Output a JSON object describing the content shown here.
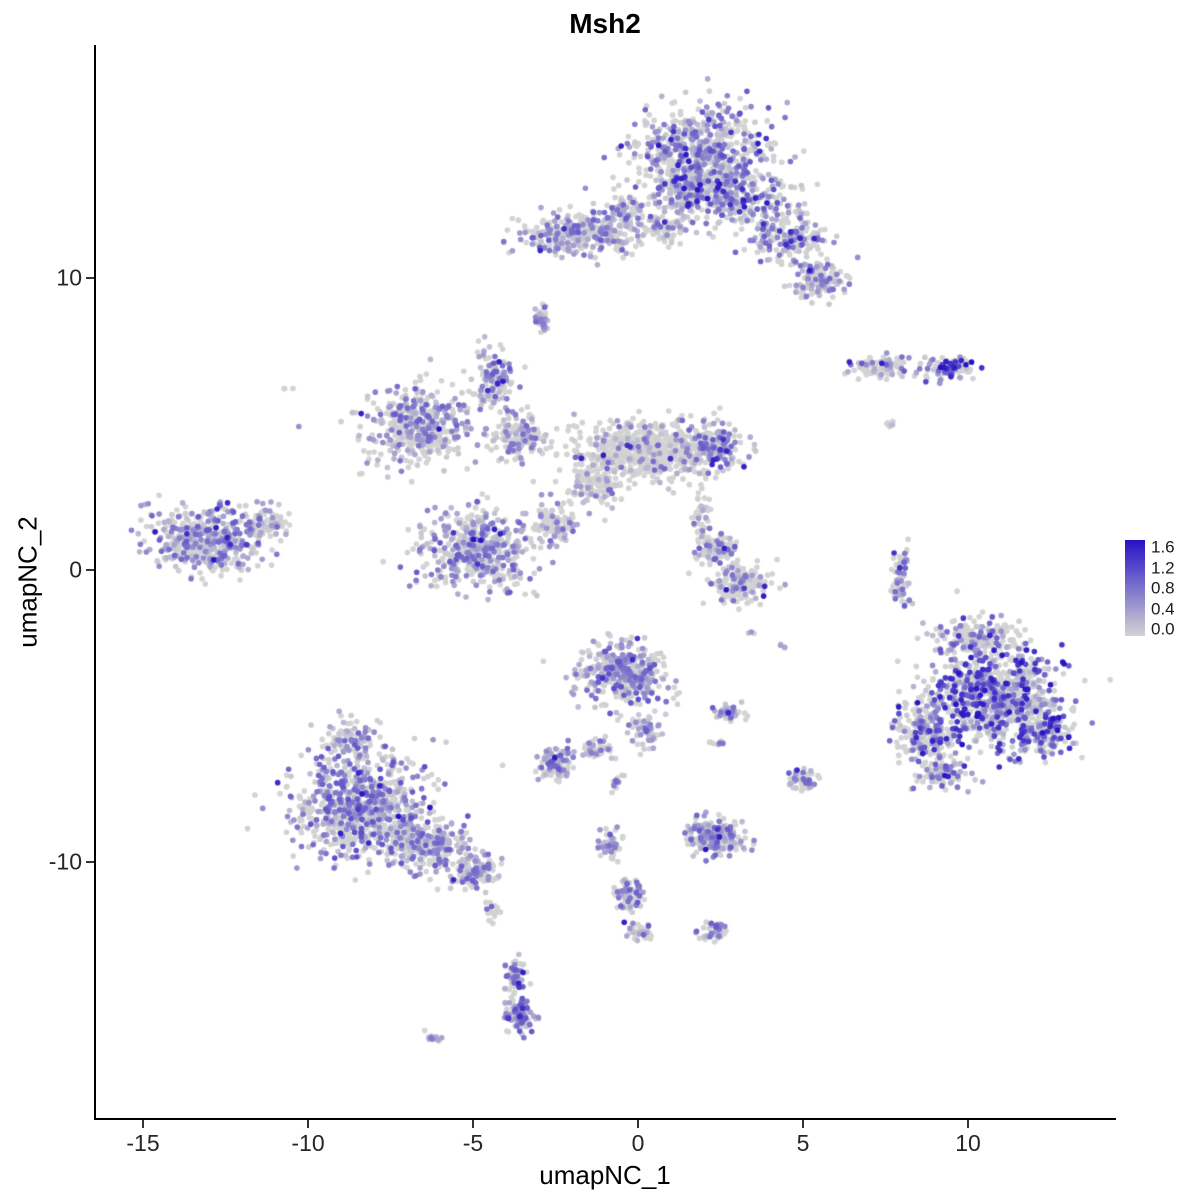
{
  "title": "Msh2",
  "chart_data": {
    "type": "scatter",
    "title": "Msh2",
    "xlabel": "umapNC_1",
    "ylabel": "umapNC_2",
    "xlim": [
      -16.5,
      14.5
    ],
    "ylim": [
      -18.8,
      18.0
    ],
    "x_ticks": [
      -15,
      -10,
      -5,
      0,
      5,
      10
    ],
    "y_ticks": [
      -10,
      0,
      10
    ],
    "grid": false,
    "point_radius": 2.8,
    "legend": {
      "position": "right",
      "vmax": 1.6,
      "low_color": "#d3d3d3",
      "high_color": "#2612c4",
      "ticks": [
        {
          "value": 1.6,
          "label": "1.6"
        },
        {
          "value": 1.2,
          "label": "1.2"
        },
        {
          "value": 0.8,
          "label": "0.8"
        },
        {
          "value": 0.4,
          "label": "0.4"
        },
        {
          "value": 0.0,
          "label": "0.0"
        }
      ]
    },
    "clusters_schema": [
      "center_x",
      "center_y",
      "spread_x",
      "spread_y",
      "n_cells",
      "fraction_zero_expression",
      "max_expression",
      "prob_high_expression"
    ],
    "clusters": [
      [
        2.0,
        14.2,
        2.0,
        1.7,
        650,
        0.45,
        1.1,
        0.04
      ],
      [
        3.0,
        12.8,
        1.6,
        1.0,
        260,
        0.45,
        1.1,
        0.03
      ],
      [
        4.6,
        11.3,
        1.1,
        0.8,
        180,
        0.5,
        1.0,
        0.02
      ],
      [
        5.5,
        9.9,
        0.9,
        0.6,
        130,
        0.5,
        1.0,
        0.02
      ],
      [
        -1.9,
        11.5,
        1.7,
        0.75,
        300,
        0.45,
        1.0,
        0.02
      ],
      [
        -0.3,
        12.2,
        0.7,
        0.7,
        90,
        0.55,
        1.0,
        0
      ],
      [
        0.8,
        11.7,
        0.7,
        0.5,
        70,
        0.55,
        0.9,
        0
      ],
      [
        1.4,
        13.0,
        0.8,
        0.8,
        120,
        0.5,
        1.0,
        0.02
      ],
      [
        7.3,
        6.9,
        0.9,
        0.4,
        90,
        0.55,
        1.0,
        0.03
      ],
      [
        9.4,
        6.9,
        0.8,
        0.35,
        100,
        0.35,
        1.2,
        0.12
      ],
      [
        7.6,
        5.0,
        0.15,
        0.15,
        6,
        0.5,
        0.8,
        0
      ],
      [
        -2.9,
        8.7,
        0.2,
        0.5,
        35,
        0.4,
        0.9,
        0
      ],
      [
        -6.6,
        4.9,
        1.6,
        1.3,
        420,
        0.4,
        1.0,
        0.01
      ],
      [
        -4.4,
        6.6,
        0.55,
        1.0,
        130,
        0.35,
        1.0,
        0.02
      ],
      [
        -3.6,
        4.6,
        0.8,
        0.8,
        150,
        0.5,
        0.9,
        0
      ],
      [
        0.2,
        4.1,
        2.3,
        1.0,
        650,
        0.8,
        0.9,
        0.005
      ],
      [
        2.3,
        4.2,
        0.9,
        0.8,
        170,
        0.5,
        1.0,
        0.02
      ],
      [
        -1.3,
        2.8,
        0.9,
        0.6,
        110,
        0.7,
        0.9,
        0
      ],
      [
        -2.5,
        1.6,
        0.8,
        0.6,
        90,
        0.6,
        0.9,
        0
      ],
      [
        1.9,
        1.8,
        0.3,
        0.9,
        40,
        0.75,
        0.9,
        0
      ],
      [
        -4.8,
        0.7,
        1.7,
        1.4,
        480,
        0.45,
        1.0,
        0.01
      ],
      [
        -13.1,
        1.0,
        1.6,
        1.2,
        420,
        0.35,
        1.0,
        0.01
      ],
      [
        -11.3,
        1.6,
        0.7,
        0.55,
        90,
        0.5,
        0.9,
        0
      ],
      [
        -10.7,
        6.2,
        0.15,
        0.15,
        3,
        0.7,
        0.5,
        0
      ],
      [
        2.4,
        0.7,
        0.6,
        0.5,
        90,
        0.6,
        1.0,
        0.01
      ],
      [
        3.1,
        -0.4,
        0.9,
        0.7,
        180,
        0.78,
        0.9,
        0.01
      ],
      [
        8.0,
        -0.2,
        0.3,
        1.0,
        70,
        0.55,
        1.0,
        0.01
      ],
      [
        10.8,
        -4.4,
        2.0,
        1.7,
        800,
        0.45,
        1.4,
        0.07
      ],
      [
        8.8,
        -5.5,
        1.0,
        1.0,
        220,
        0.5,
        1.2,
        0.04
      ],
      [
        10.3,
        -2.3,
        1.4,
        0.6,
        160,
        0.65,
        1.0,
        0.02
      ],
      [
        9.2,
        -7.0,
        0.7,
        0.5,
        90,
        0.5,
        1.1,
        0.03
      ],
      [
        12.3,
        -5.5,
        0.8,
        0.8,
        150,
        0.55,
        1.2,
        0.04
      ],
      [
        -0.4,
        -3.6,
        1.3,
        1.1,
        380,
        0.4,
        1.1,
        0.02
      ],
      [
        0.2,
        -5.5,
        0.45,
        0.6,
        60,
        0.5,
        1.0,
        0
      ],
      [
        2.8,
        -4.9,
        0.5,
        0.3,
        45,
        0.55,
        1.0,
        0.02
      ],
      [
        3.5,
        -2.2,
        0.15,
        0.15,
        3,
        0.3,
        0.9,
        0
      ],
      [
        4.4,
        -2.7,
        0.2,
        0.15,
        4,
        0.5,
        0.8,
        0
      ],
      [
        -2.5,
        -6.6,
        0.55,
        0.55,
        110,
        0.35,
        1.0,
        0.01
      ],
      [
        -1.2,
        -6.1,
        0.45,
        0.35,
        50,
        0.5,
        0.9,
        0
      ],
      [
        -0.7,
        -7.3,
        0.25,
        0.25,
        15,
        0.4,
        0.9,
        0
      ],
      [
        -8.4,
        -8.1,
        2.1,
        1.7,
        800,
        0.42,
        1.1,
        0.015
      ],
      [
        -6.3,
        -9.5,
        1.2,
        0.9,
        260,
        0.5,
        1.0,
        0.01
      ],
      [
        -4.9,
        -10.3,
        0.7,
        0.6,
        110,
        0.5,
        1.0,
        0.01
      ],
      [
        -8.7,
        -5.8,
        0.8,
        0.6,
        90,
        0.5,
        1.0,
        0.01
      ],
      [
        -4.4,
        -11.6,
        0.25,
        0.5,
        20,
        0.5,
        0.9,
        0
      ],
      [
        5.0,
        -7.2,
        0.45,
        0.4,
        55,
        0.5,
        1.0,
        0.01
      ],
      [
        2.4,
        -5.9,
        0.25,
        0.2,
        8,
        0.5,
        0.9,
        0
      ],
      [
        2.3,
        -9.1,
        0.85,
        0.65,
        200,
        0.3,
        1.0,
        0.01
      ],
      [
        -0.8,
        -9.4,
        0.4,
        0.45,
        50,
        0.5,
        1.0,
        0
      ],
      [
        -0.3,
        -11.2,
        0.45,
        0.6,
        70,
        0.45,
        1.0,
        0.01
      ],
      [
        0.1,
        -12.4,
        0.35,
        0.3,
        35,
        0.5,
        1.0,
        0
      ],
      [
        2.3,
        -12.4,
        0.55,
        0.3,
        45,
        0.45,
        1.0,
        0.01
      ],
      [
        -3.7,
        -13.9,
        0.3,
        0.6,
        60,
        0.45,
        1.0,
        0.01
      ],
      [
        -3.6,
        -15.2,
        0.4,
        0.55,
        120,
        0.2,
        1.1,
        0.02
      ],
      [
        -6.2,
        -16.0,
        0.3,
        0.2,
        14,
        0.4,
        0.9,
        0
      ]
    ]
  }
}
